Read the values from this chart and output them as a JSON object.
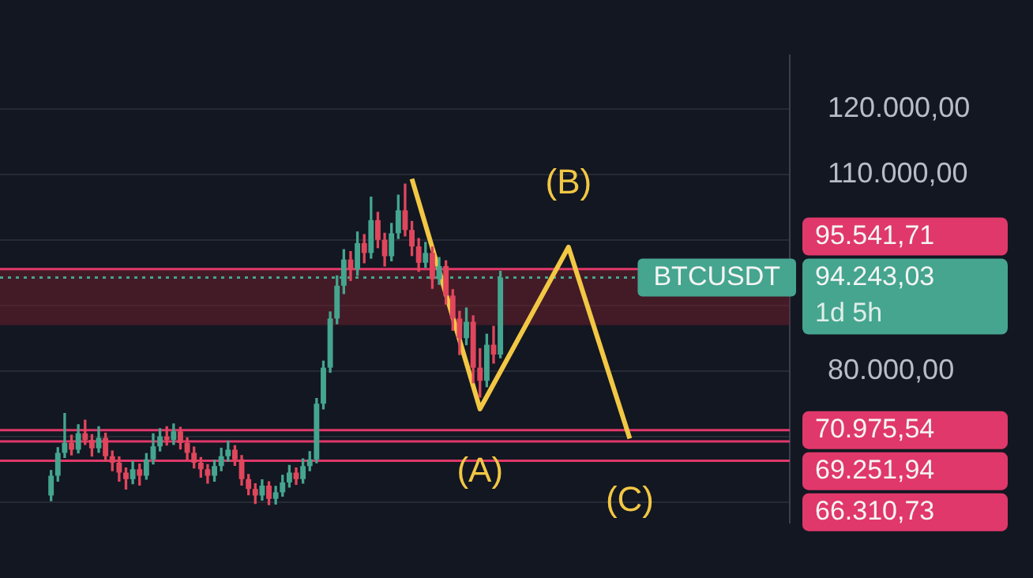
{
  "chart_data": {
    "type": "candlestick",
    "categories": [
      null,
      null,
      null,
      null,
      null,
      null,
      null,
      null,
      null,
      null,
      null,
      null,
      null,
      null,
      null,
      null,
      null,
      null,
      null,
      null,
      null,
      null,
      null,
      null,
      null,
      null,
      null,
      null,
      null,
      null,
      null,
      null,
      null,
      null,
      null,
      null,
      null,
      null,
      null,
      null,
      null,
      null,
      null,
      null,
      null,
      null,
      null,
      null,
      null,
      null,
      null,
      null,
      null,
      null,
      null,
      null,
      null,
      null,
      null,
      null,
      null,
      null,
      null,
      null,
      null,
      null,
      null,
      null,
      null,
      null,
      null,
      null,
      null,
      null,
      null,
      null,
      null,
      null,
      null,
      null,
      null,
      null,
      null,
      null,
      null,
      null,
      null,
      null,
      null,
      null,
      null,
      null,
      null,
      null,
      null,
      null,
      null,
      null,
      null,
      null,
      null,
      null,
      null,
      null,
      null,
      null,
      null,
      null,
      null,
      null,
      null,
      null,
      null,
      null,
      null,
      null
    ],
    "ohlc": [
      null,
      null,
      null,
      null,
      null,
      null,
      null,
      [
        61000,
        64800,
        60200,
        64000
      ],
      [
        64000,
        68300,
        63200,
        67500
      ],
      [
        67500,
        73500,
        66800,
        69000
      ],
      [
        69000,
        70200,
        67200,
        68000
      ],
      [
        68000,
        71800,
        67500,
        70500
      ],
      [
        70500,
        72500,
        68800,
        69500
      ],
      [
        69500,
        70300,
        67000,
        68200
      ],
      [
        68200,
        71500,
        67600,
        69800
      ],
      [
        69800,
        70500,
        66200,
        67000
      ],
      [
        67000,
        67800,
        64800,
        66000
      ],
      [
        66000,
        66900,
        63200,
        64500
      ],
      [
        64500,
        65200,
        62000,
        63500
      ],
      [
        63500,
        66200,
        62800,
        65000
      ],
      [
        65000,
        65800,
        62600,
        64000
      ],
      [
        64000,
        67400,
        63500,
        66500
      ],
      [
        66500,
        70400,
        65800,
        68500
      ],
      [
        68500,
        71200,
        67800,
        70000
      ],
      [
        70000,
        71500,
        68700,
        69500
      ],
      [
        69500,
        71900,
        68800,
        70800
      ],
      [
        70800,
        71400,
        68100,
        69000
      ],
      [
        69000,
        69800,
        66500,
        67500
      ],
      [
        67500,
        68400,
        65200,
        66000
      ],
      [
        66000,
        66800,
        63800,
        65000
      ],
      [
        65000,
        65700,
        62900,
        64000
      ],
      [
        64000,
        66400,
        63200,
        65500
      ],
      [
        65500,
        68200,
        64800,
        67000
      ],
      [
        67000,
        69300,
        66200,
        68000
      ],
      [
        68000,
        68600,
        65600,
        66500
      ],
      [
        66500,
        67100,
        62600,
        63500
      ],
      [
        63500,
        64200,
        61100,
        62000
      ],
      [
        62000,
        62800,
        59800,
        61000
      ],
      [
        61000,
        63400,
        60300,
        62500
      ],
      [
        62500,
        63100,
        59600,
        60500
      ],
      [
        60500,
        62400,
        59700,
        61500
      ],
      [
        61500,
        64100,
        60900,
        63000
      ],
      [
        63000,
        65600,
        62300,
        64500
      ],
      [
        64500,
        65200,
        62700,
        63500
      ],
      [
        63500,
        66600,
        62900,
        65500
      ],
      [
        65500,
        67700,
        64800,
        66500
      ],
      [
        66500,
        75800,
        66000,
        75000
      ],
      [
        75000,
        81500,
        74200,
        80500
      ],
      [
        80500,
        89000,
        79800,
        88000
      ],
      [
        88000,
        94500,
        87200,
        93000
      ],
      [
        93000,
        98500,
        91800,
        97000
      ],
      [
        97000,
        98200,
        93800,
        95500
      ],
      [
        95500,
        101200,
        94600,
        99500
      ],
      [
        99500,
        100800,
        96500,
        98000
      ],
      [
        98000,
        106500,
        97200,
        103000
      ],
      [
        103000,
        104200,
        98800,
        100000
      ],
      [
        100000,
        101000,
        96000,
        97500
      ],
      [
        97500,
        102500,
        96800,
        101000
      ],
      [
        101000,
        106800,
        100200,
        104500
      ],
      [
        104500,
        108500,
        100600,
        101500
      ],
      [
        101500,
        102800,
        97600,
        99000
      ],
      [
        99000,
        100200,
        95200,
        96500
      ],
      [
        96500,
        99600,
        95800,
        98000
      ],
      [
        98000,
        98900,
        92600,
        94000
      ],
      [
        94000,
        97300,
        93200,
        96000
      ],
      [
        96000,
        96800,
        90200,
        91500
      ],
      [
        91500,
        92400,
        86200,
        88000
      ],
      [
        88000,
        89100,
        82500,
        85000
      ],
      [
        85000,
        89600,
        84000,
        87500
      ],
      [
        87500,
        88400,
        78200,
        80500
      ],
      [
        80500,
        83400,
        76000,
        78500
      ],
      [
        78500,
        85600,
        77600,
        84000
      ],
      [
        84000,
        86800,
        81200,
        82500
      ],
      [
        82500,
        95200,
        82000,
        94243.03
      ],
      null,
      null,
      null,
      null,
      null,
      null,
      null,
      null,
      null,
      null,
      null,
      null,
      null,
      null,
      null,
      null,
      null,
      null,
      null,
      null,
      null,
      null,
      null,
      null,
      null,
      null,
      null,
      null,
      null,
      null,
      null,
      null,
      null,
      null,
      null,
      null,
      null,
      null,
      null,
      null,
      null,
      null
    ],
    "colors": [
      null,
      null,
      null,
      null,
      null,
      null,
      null,
      "#45a58f",
      "#45a58f",
      "#45a58f",
      "#e0465c",
      "#45a58f",
      "#e0465c",
      "#e0465c",
      "#45a58f",
      "#e0465c",
      "#e0465c",
      "#e0465c",
      "#e0465c",
      "#45a58f",
      "#e0465c",
      "#45a58f",
      "#45a58f",
      "#45a58f",
      "#e0465c",
      "#45a58f",
      "#e0465c",
      "#e0465c",
      "#e0465c",
      "#e0465c",
      "#e0465c",
      "#45a58f",
      "#45a58f",
      "#45a58f",
      "#e0465c",
      "#e0465c",
      "#e0465c",
      "#e0465c",
      "#45a58f",
      "#e0465c",
      "#45a58f",
      "#45a58f",
      "#45a58f",
      "#e0465c",
      "#45a58f",
      "#45a58f",
      "#45a58f",
      "#45a58f",
      "#45a58f",
      "#45a58f",
      "#45a58f",
      "#e0465c",
      "#45a58f",
      "#e0465c",
      "#45a58f",
      "#e0465c",
      "#e0465c",
      "#45a58f",
      "#45a58f",
      "#e0465c",
      "#e0465c",
      "#e0465c",
      "#45a58f",
      "#e0465c",
      "#45a58f",
      "#e0465c",
      "#e0465c",
      "#e0465c",
      "#45a58f",
      "#e0465c",
      "#e0465c",
      "#45a58f",
      "#e0465c",
      "#45a58f",
      null,
      null,
      null,
      null,
      null,
      null,
      null,
      null,
      null,
      null,
      null,
      null,
      null,
      null,
      null,
      null,
      null,
      null,
      null,
      null,
      null,
      null,
      null,
      null,
      null,
      null,
      null,
      null,
      null,
      null,
      null,
      null,
      null,
      null,
      null,
      null,
      null,
      null,
      null,
      null,
      null,
      null
    ],
    "series": [
      {
        "type": "line",
        "color": "#f2c744",
        "values": [
          null,
          null,
          null,
          null,
          null,
          null,
          null,
          null,
          null,
          null,
          null,
          null,
          null,
          null,
          null,
          null,
          null,
          null,
          null,
          null,
          null,
          null,
          null,
          null,
          null,
          null,
          null,
          null,
          null,
          null,
          null,
          null,
          null,
          null,
          null,
          null,
          null,
          null,
          null,
          null,
          null,
          null,
          null,
          null,
          null,
          null,
          null,
          null,
          null,
          null,
          null,
          null,
          null,
          null,
          null,
          null,
          null,
          null,
          null,
          null,
          109300,
          null,
          null,
          null,
          null,
          null,
          null,
          null,
          null,
          null,
          74200,
          null,
          null,
          null,
          null,
          null,
          null,
          null,
          null,
          null,
          null,
          null,
          null,
          98900,
          null,
          null,
          null,
          null,
          null,
          null,
          null,
          null,
          69700,
          null,
          null,
          null,
          null,
          null,
          null,
          null,
          null,
          null,
          null,
          null,
          null,
          null,
          null,
          null,
          null,
          null,
          null,
          null,
          null,
          null,
          null,
          null
        ]
      }
    ],
    "ylim": [
      56800,
      128200
    ],
    "yticks": [
      {
        "value": 120000,
        "label": "120.000,00"
      },
      {
        "value": 110000,
        "label": "110.000,00"
      },
      {
        "value": 100000,
        "label": null
      },
      {
        "value": 90000,
        "label": null
      },
      {
        "value": 80000,
        "label": "80.000,00"
      },
      {
        "value": 70000,
        "label": null
      },
      {
        "value": 60000,
        "label": null
      }
    ],
    "tick_labels": "y",
    "grid": "y",
    "legend": false,
    "bands": [
      {
        "axis": "y",
        "from": 87000,
        "to": 95541.71,
        "color": "#6a1f2c"
      }
    ],
    "ref_lines": [
      {
        "axis": "y",
        "value": 95541.71,
        "label": "95.541,71",
        "color": "#e0386a"
      },
      {
        "axis": "y",
        "value": 94243.03,
        "label": "94.243,03",
        "color": "#45a58f",
        "line_style": "dotted"
      },
      {
        "axis": "y",
        "value": 70975.54,
        "label": "70.975,54",
        "color": "#e0386a"
      },
      {
        "axis": "y",
        "value": 69251.94,
        "label": "69.251,94",
        "color": "#e0386a"
      },
      {
        "axis": "y",
        "value": 66310.73,
        "label": "66.310,73",
        "color": "#e0386a"
      }
    ],
    "annotations": [
      "(A)",
      "(B)",
      "(C)",
      "BTCUSDT",
      "1d 5h"
    ]
  }
}
